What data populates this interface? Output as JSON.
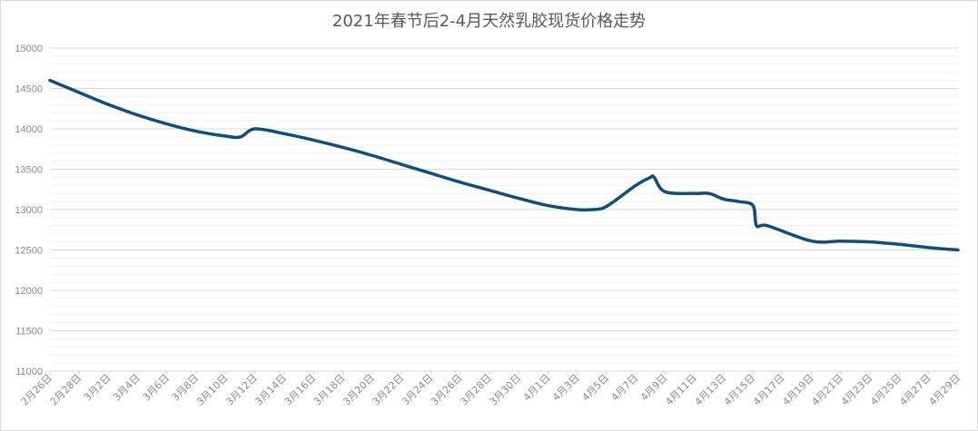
{
  "chart_data": {
    "type": "line",
    "title": "2021年春节后2-4月天然乳胶现货价格走势",
    "xlabel": "",
    "ylabel": "",
    "ylim": [
      11000,
      15000
    ],
    "yticks": [
      11000,
      11500,
      12000,
      12500,
      13000,
      13500,
      14000,
      14500,
      15000
    ],
    "y_minor_step": 100,
    "grid": true,
    "legend": "none",
    "x_tick_labels": [
      "2月26日",
      "2月28日",
      "3月2日",
      "3月4日",
      "3月6日",
      "3月8日",
      "3月10日",
      "3月12日",
      "3月14日",
      "3月16日",
      "3月18日",
      "3月20日",
      "3月22日",
      "3月24日",
      "3月26日",
      "3月28日",
      "3月30日",
      "4月1日",
      "4月3日",
      "4月5日",
      "4月7日",
      "4月9日",
      "4月11日",
      "4月13日",
      "4月15日",
      "4月17日",
      "4月19日",
      "4月21日",
      "4月23日",
      "4月25日",
      "4月27日",
      "4月29日"
    ],
    "series": [
      {
        "color": "#0e4f7c",
        "x": [
          "2月26日",
          "2月28日",
          "3月2日",
          "3月4日",
          "3月6日",
          "3月8日",
          "3月10日",
          "3月11日",
          "3月12日",
          "3月14日",
          "3月16日",
          "3月18日",
          "3月20日",
          "3月22日",
          "3月24日",
          "3月26日",
          "3月28日",
          "3月30日",
          "4月1日",
          "4月3日",
          "4月4日",
          "4月5日",
          "4月7日",
          "4月8日",
          "4月8日",
          "4月9日",
          "4月11日",
          "4月12日",
          "4月13日",
          "4月14日",
          "4月15日",
          "4月15日",
          "4月16日",
          "4月19日",
          "4月21日",
          "4月23日",
          "4月25日",
          "4月27日",
          "4月29日"
        ],
        "values": [
          14600,
          14450,
          14300,
          14170,
          14060,
          13970,
          13910,
          13900,
          14000,
          13940,
          13860,
          13770,
          13670,
          13560,
          13450,
          13340,
          13240,
          13140,
          13050,
          13000,
          13000,
          13040,
          13300,
          13400,
          13400,
          13220,
          13200,
          13200,
          13130,
          13100,
          13050,
          12800,
          12800,
          12610,
          12610,
          12600,
          12570,
          12530,
          12500
        ]
      }
    ]
  }
}
